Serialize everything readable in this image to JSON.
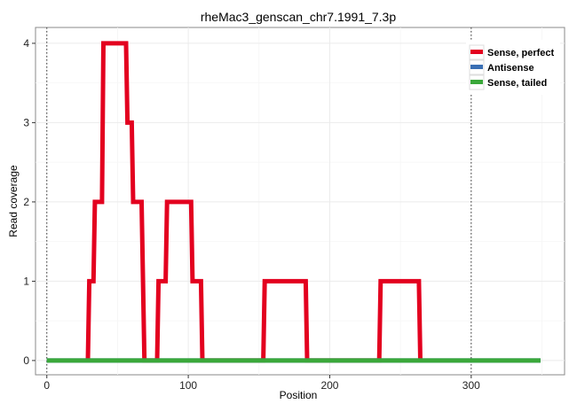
{
  "chart_data": {
    "type": "line",
    "title": "rheMac3_genscan_chr7.1991_7.3p",
    "xlabel": "Position",
    "ylabel": "Read coverage",
    "xlim": [
      -8,
      366
    ],
    "ylim": [
      -0.18,
      4.2
    ],
    "x_ticks": [
      0,
      100,
      200,
      300
    ],
    "x_tick_labels": [
      "0",
      "100",
      "200",
      "300"
    ],
    "y_ticks": [
      0,
      1,
      2,
      3,
      4
    ],
    "y_tick_labels": [
      "0",
      "1",
      "2",
      "3",
      "4"
    ],
    "vlines": [
      0,
      300
    ],
    "grid": true,
    "legend_position": "top-right",
    "series": [
      {
        "name": "Sense, perfect",
        "color": "#e3001f",
        "points": [
          [
            29,
            0
          ],
          [
            30,
            1
          ],
          [
            33,
            1
          ],
          [
            34,
            2
          ],
          [
            39,
            2
          ],
          [
            40,
            4
          ],
          [
            56,
            4
          ],
          [
            57,
            3
          ],
          [
            60,
            3
          ],
          [
            61,
            2
          ],
          [
            67,
            2
          ],
          [
            69,
            0
          ],
          [
            78,
            0
          ],
          [
            79,
            1
          ],
          [
            84,
            1
          ],
          [
            85,
            2
          ],
          [
            102,
            2
          ],
          [
            103,
            1
          ],
          [
            109,
            1
          ],
          [
            110,
            0
          ],
          [
            153,
            0
          ],
          [
            154,
            1
          ],
          [
            183,
            1
          ],
          [
            184,
            0
          ],
          [
            235,
            0
          ],
          [
            236,
            1
          ],
          [
            263,
            1
          ],
          [
            264,
            0
          ]
        ]
      },
      {
        "name": "Antisense",
        "color": "#3a6fb4",
        "points": [
          [
            0,
            0
          ],
          [
            349,
            0
          ]
        ]
      },
      {
        "name": "Sense, tailed",
        "color": "#3aa83a",
        "points": [
          [
            0,
            0
          ],
          [
            349,
            0
          ]
        ]
      }
    ]
  }
}
